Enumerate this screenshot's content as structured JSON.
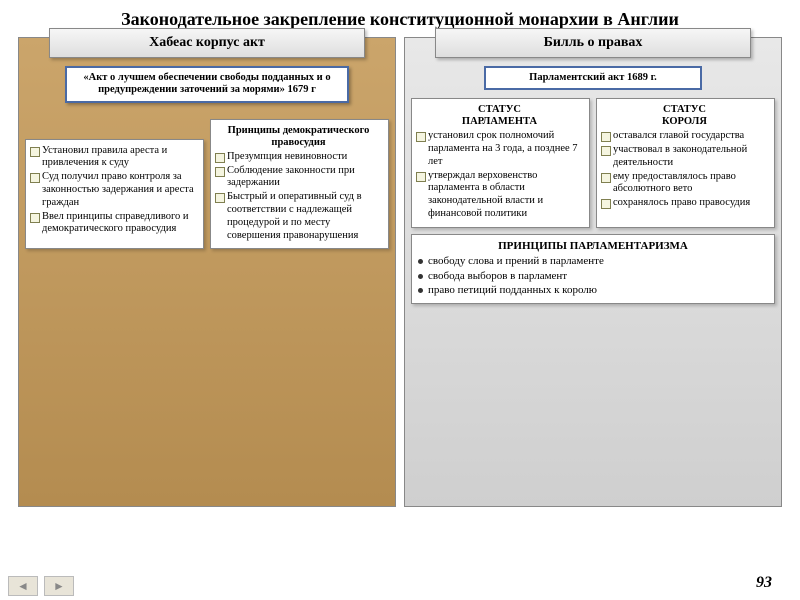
{
  "title": "Законодательное закрепление конституционной монархии в Англии",
  "left": {
    "heading": "Хабеас корпус акт",
    "sub_label": "«Акт о лучшем обеспечении свободы подданных и о предупреждении заточений за морями» 1679 г",
    "col_a_items": [
      "Установил правила ареста и привлечения к суду",
      "Суд получил право контроля за законностью задержания и ареста граждан",
      "Ввел принципы справедливого и демократического правосудия"
    ],
    "col_b_title": "Принципы демократического правосудия",
    "col_b_items": [
      "Презумпция невиновности",
      "Соблюдение законности при задержании",
      "Быстрый и оперативный суд в соответствии с надлежащей процедурой и по месту совершения правонарушения"
    ]
  },
  "right": {
    "heading": "Билль о правах",
    "sub_label": "Парламентский акт 1689 г.",
    "col_a_title": "СТАТУС\nПАРЛАМЕНТА",
    "col_a_items": [
      "установил срок полномочий парламента на 3 года, а позднее 7 лет",
      "утверждал верховенство парламента в области законодательной власти и финансовой политики"
    ],
    "col_b_title": "СТАТУС\nКОРОЛЯ",
    "col_b_items": [
      "оставался главой государства",
      "участвовал в законодательной деятельности",
      "ему предоставлялось право абсолютного вето",
      "сохранялось право правосудия"
    ],
    "principles_title": "ПРИНЦИПЫ ПАРЛАМЕНТАРИЗМА",
    "principles_items": [
      "свободу слова и прений в парламенте",
      "свобода выборов в парламент",
      "право петиций подданных к королю"
    ]
  },
  "page_num": "93",
  "footer_mark": "*",
  "colors": {
    "left_bg_top": "#cba56b",
    "left_bg_bottom": "#b48c50",
    "right_bg_top": "#e8e8e8",
    "right_bg_bottom": "#cfcfcf",
    "border": "#888",
    "sub_border": "#4a6aa5"
  }
}
